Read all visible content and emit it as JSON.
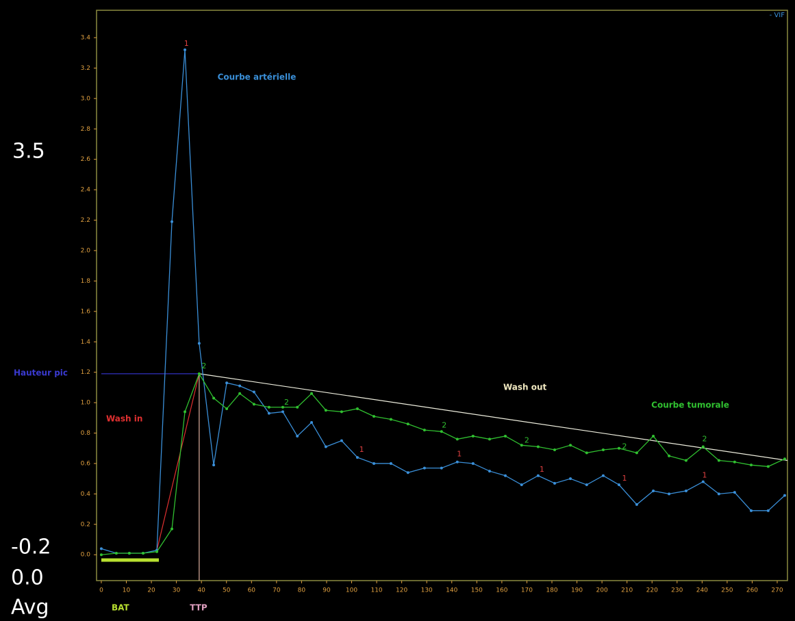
{
  "chart_data": {
    "type": "line",
    "legend": "- VIF",
    "legend_color": "#3a8fd8",
    "x": [
      0,
      6.0,
      11.2,
      16.7,
      22.2,
      28.2,
      33.4,
      39.1,
      44.9,
      50.1,
      55.3,
      61.0,
      67.0,
      72.5,
      78.3,
      84.0,
      89.7,
      96.0,
      102.3,
      108.9,
      115.7,
      122.5,
      129.1,
      135.9,
      142.2,
      148.5,
      155.1,
      161.4,
      167.9,
      174.5,
      181.1,
      187.4,
      193.9,
      200.5,
      206.8,
      213.9,
      220.5,
      226.8,
      233.6,
      240.4,
      246.7,
      253.0,
      259.6,
      266.4,
      273.0
    ],
    "series": [
      {
        "color": "#3a8fd8",
        "values": [
          0.04,
          0.01,
          0.01,
          0.01,
          0.03,
          2.19,
          3.32,
          1.39,
          0.59,
          1.13,
          1.11,
          1.07,
          0.93,
          0.94,
          0.78,
          0.87,
          0.71,
          0.75,
          0.64,
          0.6,
          0.6,
          0.54,
          0.57,
          0.57,
          0.61,
          0.6,
          0.55,
          0.52,
          0.46,
          0.52,
          0.47,
          0.5,
          0.46,
          0.52,
          0.46,
          0.33,
          0.42,
          0.4,
          0.42,
          0.48,
          0.4,
          0.41,
          0.29,
          0.29,
          0.39
        ]
      },
      {
        "color": "#30c030",
        "values": [
          0.0,
          0.01,
          0.01,
          0.01,
          0.02,
          0.17,
          0.94,
          1.19,
          1.03,
          0.96,
          1.06,
          0.99,
          0.97,
          0.97,
          0.97,
          1.06,
          0.95,
          0.94,
          0.96,
          0.91,
          0.89,
          0.86,
          0.82,
          0.81,
          0.76,
          0.78,
          0.76,
          0.78,
          0.72,
          0.71,
          0.69,
          0.72,
          0.67,
          0.69,
          0.7,
          0.67,
          0.78,
          0.65,
          0.62,
          0.71,
          0.62,
          0.61,
          0.59,
          0.58,
          0.63
        ]
      }
    ],
    "lines": [
      {
        "x": [
          22.2,
          39.1
        ],
        "y": [
          0.03,
          1.19
        ],
        "color": "#e03030"
      },
      {
        "x": [
          39.1,
          274.1
        ],
        "y": [
          1.19,
          0.62
        ],
        "color": "#f0f0e0"
      },
      {
        "x": [
          0,
          39.1
        ],
        "y": [
          1.19,
          1.19
        ],
        "color": "#3030c0"
      },
      {
        "x": [
          39.1,
          39.1
        ],
        "y": [
          -0.17,
          1.19
        ],
        "color": "#e0b0a0"
      },
      {
        "x": [
          0,
          23
        ],
        "y": [
          -0.035,
          -0.035
        ],
        "color": "#b8e030",
        "width": 5
      }
    ],
    "markers": [
      {
        "label": "1",
        "x": 34,
        "y": 3.36,
        "color": "#e04040"
      },
      {
        "label": "1",
        "x": 104,
        "y": 0.69,
        "color": "#e04040"
      },
      {
        "label": "1",
        "x": 143,
        "y": 0.66,
        "color": "#e04040"
      },
      {
        "label": "1",
        "x": 176,
        "y": 0.56,
        "color": "#e04040"
      },
      {
        "label": "1",
        "x": 209,
        "y": 0.5,
        "color": "#e04040"
      },
      {
        "label": "1",
        "x": 241,
        "y": 0.52,
        "color": "#e04040"
      },
      {
        "label": "2",
        "x": 41,
        "y": 1.24,
        "color": "#30c030"
      },
      {
        "label": "2",
        "x": 74,
        "y": 1.0,
        "color": "#30c030"
      },
      {
        "label": "2",
        "x": 137,
        "y": 0.85,
        "color": "#30c030"
      },
      {
        "label": "2",
        "x": 170,
        "y": 0.75,
        "color": "#30c030"
      },
      {
        "label": "2",
        "x": 209,
        "y": 0.71,
        "color": "#30c030"
      },
      {
        "label": "2",
        "x": 241,
        "y": 0.76,
        "color": "#30c030"
      }
    ],
    "annotations": [
      {
        "text": "Courbe artérielle",
        "color": "#3a8fd8"
      },
      {
        "text": "Hauteur pic",
        "color": "#3a3ad0"
      },
      {
        "text": "Wash in",
        "color": "#e03030"
      },
      {
        "text": "Wash out",
        "color": "#f0e8c0"
      },
      {
        "text": "Courbe tumorale",
        "color": "#30c030"
      },
      {
        "text": "BAT",
        "color": "#b8e030"
      },
      {
        "text": "TTP",
        "color": "#e0a0c0"
      }
    ],
    "side_labels": [
      "3.5",
      "-0.2",
      "0.0",
      "Avg"
    ],
    "xlim": [
      -1.9,
      274.1
    ],
    "ylim": [
      -0.17,
      3.58
    ],
    "xticks": [
      0,
      10,
      20,
      30,
      40,
      50,
      60,
      70,
      80,
      90,
      100,
      110,
      120,
      130,
      140,
      150,
      160,
      170,
      180,
      190,
      200,
      210,
      220,
      230,
      240,
      250,
      260,
      270
    ],
    "yticks": [
      {
        "value": 0,
        "label": "0.0"
      },
      {
        "value": 0.2,
        "label": "0.2"
      },
      {
        "value": 0.4,
        "label": "0.4"
      },
      {
        "value": 0.6,
        "label": "0.6"
      },
      {
        "value": 0.8,
        "label": "0.8"
      },
      {
        "value": 1,
        "label": "1.0"
      },
      {
        "value": 1.2,
        "label": "1.2"
      },
      {
        "value": 1.4,
        "label": "1.4"
      },
      {
        "value": 1.6,
        "label": "1.6"
      },
      {
        "value": 1.8,
        "label": "1.8"
      },
      {
        "value": 2,
        "label": "2.0"
      },
      {
        "value": 2.2,
        "label": "2.2"
      },
      {
        "value": 2.4,
        "label": "2.4"
      },
      {
        "value": 2.6,
        "label": "2.6"
      },
      {
        "value": 2.8,
        "label": "2.8"
      },
      {
        "value": 3,
        "label": "3.0"
      },
      {
        "value": 3.2,
        "label": "3.2"
      },
      {
        "value": 3.4,
        "label": "3.4"
      }
    ]
  }
}
